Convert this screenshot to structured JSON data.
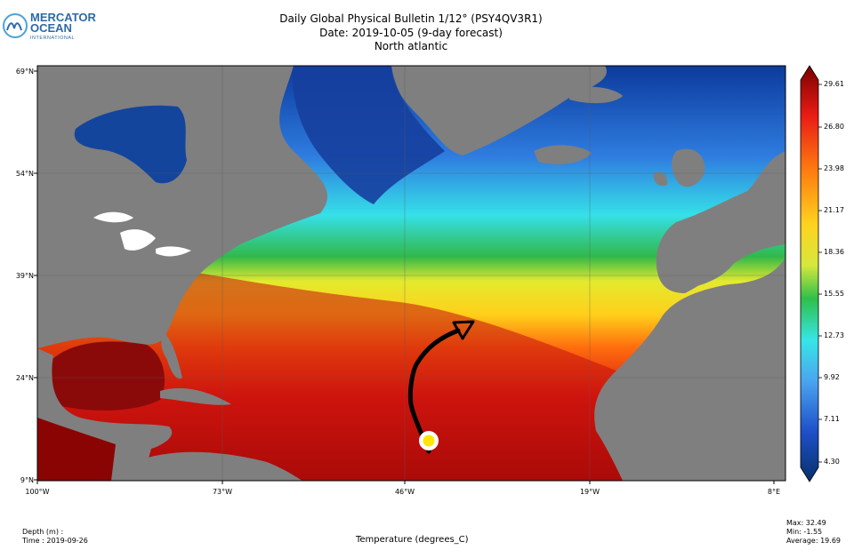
{
  "logo": {
    "line1": "MERCATOR",
    "line2": "OCEAN",
    "line3": "INTERNATIONAL"
  },
  "header": {
    "title": "Daily Global Physical Bulletin 1/12° (PSY4QV3R1)",
    "date": "Date: 2019-10-05 (9-day forecast)",
    "region": "North atlantic"
  },
  "axes": {
    "lat": [
      "69°N",
      "54°N",
      "39°N",
      "24°N",
      "9°N"
    ],
    "lon": [
      "100°W",
      "73°W",
      "46°W",
      "19°W",
      "8°E"
    ]
  },
  "colorbar": {
    "ticks": [
      "29.61",
      "26.80",
      "23.98",
      "21.17",
      "18.36",
      "15.55",
      "12.73",
      "9.92",
      "7.11",
      "4.30"
    ],
    "colors": [
      "#08306b",
      "#1e50c8",
      "#4aa3f0",
      "#37e6e6",
      "#2fbf4a",
      "#d6e83c",
      "#ffd21e",
      "#ff7a10",
      "#e81c14",
      "#7a0000"
    ]
  },
  "footer": {
    "depth": "Depth (m) :",
    "time": "Time : 2019-09-26",
    "variable": "Temperature (degrees_C)",
    "max": "Max: 32.49",
    "min": "Min: -1.55",
    "average": "Average: 19.69"
  }
}
